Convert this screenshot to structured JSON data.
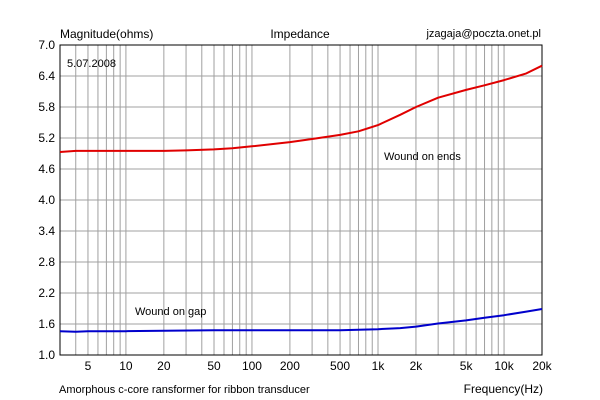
{
  "chart_data": {
    "type": "line",
    "title": "Impedance",
    "ylabel": "Magnitude(ohms)",
    "xlabel": "Frequency(Hz)",
    "header_right": "jzagaja@poczta.onet.pl",
    "date_label": "5.07.2008",
    "footnote": "Amorphous c-core ransformer for ribbon transducer",
    "x_scale": "log",
    "xlim": [
      3,
      20000
    ],
    "ylim": [
      1.0,
      7.0
    ],
    "grid": true,
    "x_ticks": [
      {
        "value": 5,
        "label": "5"
      },
      {
        "value": 10,
        "label": "10"
      },
      {
        "value": 20,
        "label": "20"
      },
      {
        "value": 50,
        "label": "50"
      },
      {
        "value": 100,
        "label": "100"
      },
      {
        "value": 200,
        "label": "200"
      },
      {
        "value": 500,
        "label": "500"
      },
      {
        "value": 1000,
        "label": "1k"
      },
      {
        "value": 2000,
        "label": "2k"
      },
      {
        "value": 5000,
        "label": "5k"
      },
      {
        "value": 10000,
        "label": "10k"
      },
      {
        "value": 20000,
        "label": "20k"
      }
    ],
    "y_ticks": [
      {
        "value": 1.0,
        "label": "1.0"
      },
      {
        "value": 1.6,
        "label": "1.6"
      },
      {
        "value": 2.2,
        "label": "2.2"
      },
      {
        "value": 2.8,
        "label": "2.8"
      },
      {
        "value": 3.4,
        "label": "3.4"
      },
      {
        "value": 4.0,
        "label": "4.0"
      },
      {
        "value": 4.6,
        "label": "4.6"
      },
      {
        "value": 5.2,
        "label": "5.2"
      },
      {
        "value": 5.8,
        "label": "5.8"
      },
      {
        "value": 6.4,
        "label": "6.4"
      },
      {
        "value": 7.0,
        "label": "7.0"
      }
    ],
    "series": [
      {
        "name": "Wound on ends",
        "color": "#e00000",
        "x": [
          3,
          4,
          5,
          10,
          20,
          30,
          50,
          70,
          100,
          200,
          300,
          500,
          700,
          1000,
          1500,
          2000,
          3000,
          5000,
          7000,
          10000,
          15000,
          20000
        ],
        "y": [
          4.93,
          4.95,
          4.95,
          4.95,
          4.95,
          4.96,
          4.98,
          5.0,
          5.04,
          5.12,
          5.18,
          5.26,
          5.33,
          5.45,
          5.65,
          5.8,
          5.98,
          6.13,
          6.22,
          6.32,
          6.45,
          6.6
        ]
      },
      {
        "name": "Wound on gap",
        "color": "#0000cc",
        "x": [
          3,
          4,
          5,
          10,
          20,
          50,
          100,
          200,
          500,
          700,
          1000,
          1500,
          2000,
          3000,
          5000,
          7000,
          10000,
          15000,
          20000
        ],
        "y": [
          1.46,
          1.45,
          1.46,
          1.46,
          1.47,
          1.48,
          1.48,
          1.48,
          1.48,
          1.49,
          1.5,
          1.52,
          1.55,
          1.61,
          1.67,
          1.72,
          1.77,
          1.84,
          1.89
        ]
      }
    ]
  }
}
